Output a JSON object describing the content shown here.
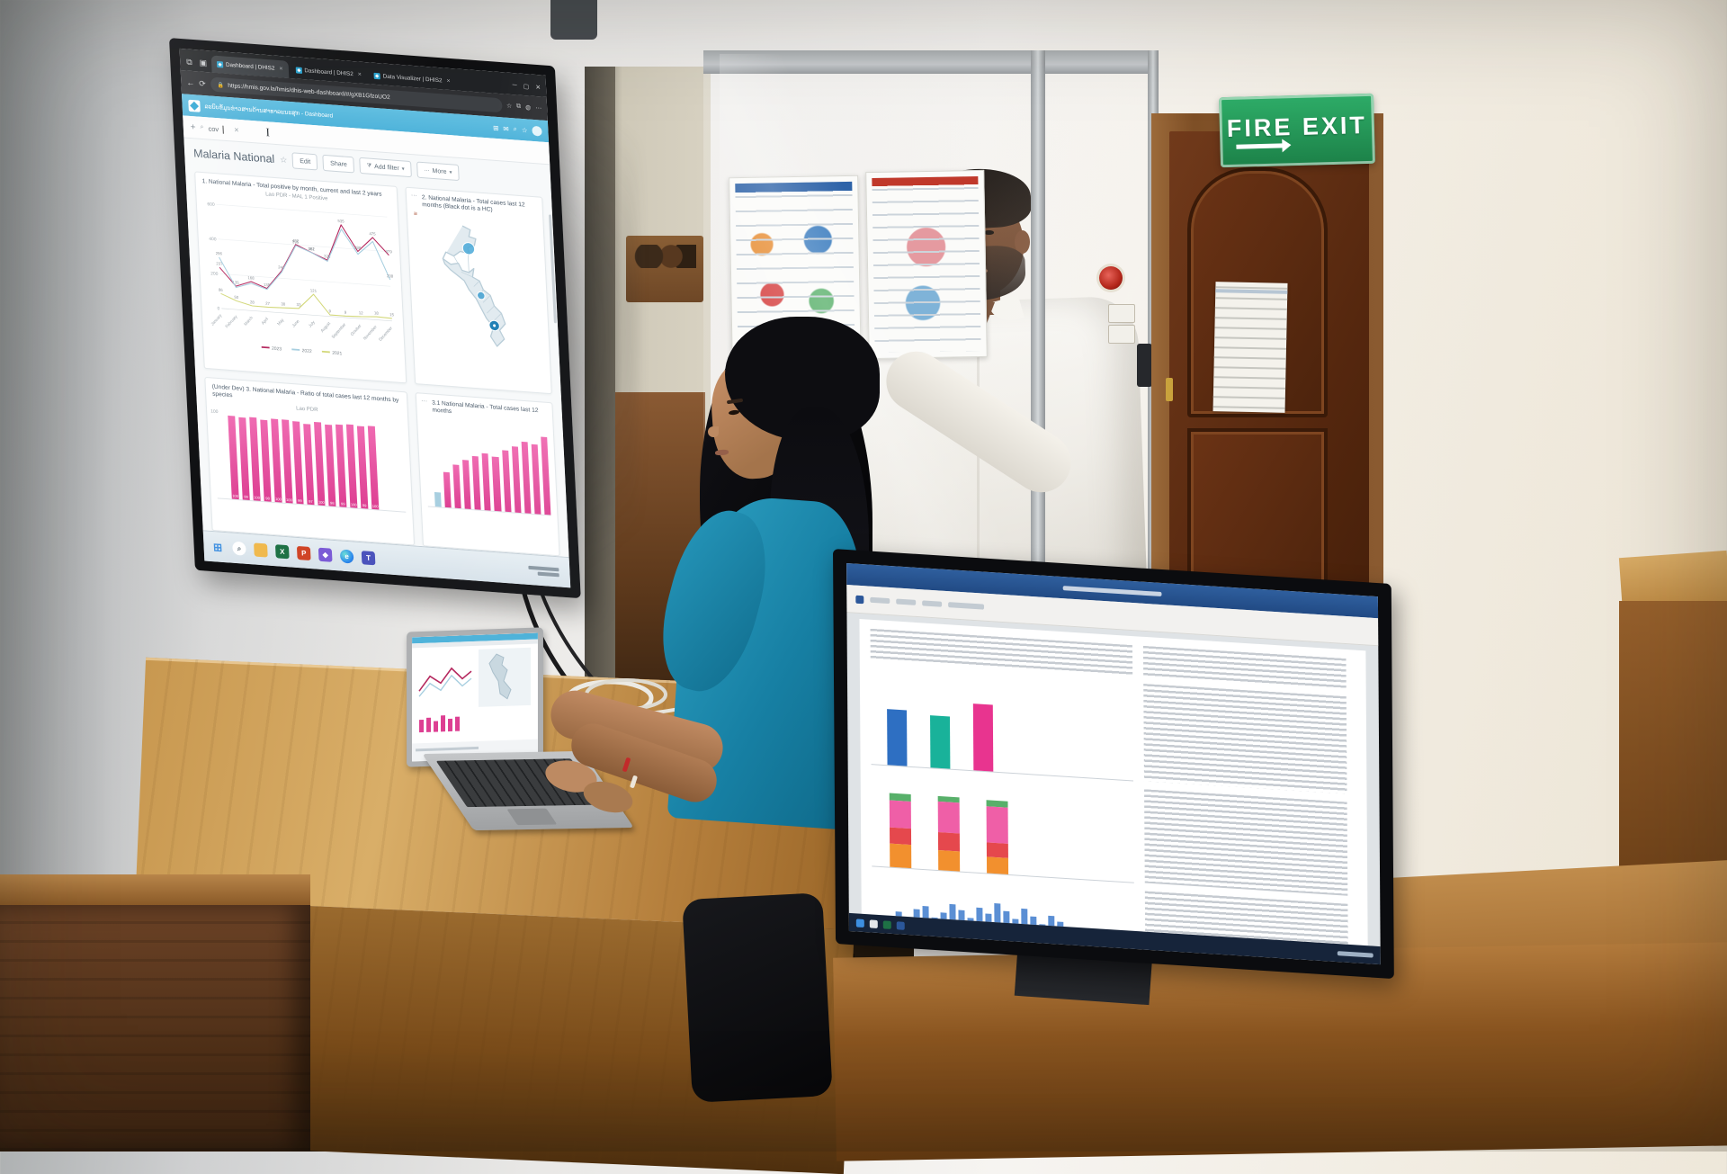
{
  "scene": {
    "setting": "Two health staff review a DHIS2 malaria dashboard on a wall-mounted TV in an office",
    "fire_exit_label": "FIRE EXIT"
  },
  "browser": {
    "tabs": [
      {
        "title": "Dashboard | DHIS2",
        "active": true
      },
      {
        "title": "Dashboard | DHIS2",
        "active": false
      },
      {
        "title": "Data Visualizer | DHIS2",
        "active": false
      }
    ],
    "url": "https://hmis.gov.la/hmis/dhis-web-dashboard/#/gXB1GfzoUO2"
  },
  "dhis2": {
    "header_title": "ລະບົບຂໍ້ມູນຂ່າວສານດ້ານສາທາລະນະສຸກ - Dashboard",
    "search_value": "cov",
    "dashboard_title": "Malaria National",
    "actions": {
      "edit": "Edit",
      "share": "Share",
      "add_filter": "Add filter",
      "more": "More"
    }
  },
  "chart_data": [
    {
      "type": "line",
      "title": "1. National Malaria - Total positive by month, current and last 2 years",
      "subtitle": "Lao PDR - MAL 1 Positive",
      "x": [
        "January",
        "February",
        "March",
        "April",
        "May",
        "June",
        "July",
        "August",
        "September",
        "October",
        "November",
        "December"
      ],
      "ylim": [
        0,
        600
      ],
      "yticks": [
        0,
        200,
        400,
        600
      ],
      "legend_position": "bottom",
      "series": [
        {
          "name": "2023",
          "color": "#b5295f",
          "values": [
            237,
            135,
            168,
            135,
            242,
            402,
            362,
            325,
            535,
            388,
            475,
            379
          ]
        },
        {
          "name": "2022",
          "color": "#a8cfe0",
          "values": [
            296,
            128,
            158,
            130,
            235,
            395,
            361,
            318,
            510,
            372,
            452,
            238
          ],
          "label_indices": [
            0,
            5,
            6,
            11
          ]
        },
        {
          "name": "2021",
          "color": "#d3d87a",
          "values": [
            86,
            50,
            28,
            27,
            30,
            33,
            121,
            9,
            9,
            12,
            18,
            15
          ]
        }
      ]
    },
    {
      "type": "map",
      "title": "2. National Malaria - Total cases last 12 months (Black dot is a HC)",
      "region": "Lao PDR",
      "marker_color": "#3f9fd0",
      "marker_count": 3
    },
    {
      "type": "bar",
      "title": "(Under Dev) 3. National Malaria - Ratio of total cases last 12 months by species",
      "subtitle": "Lao PDR",
      "ylim": [
        0,
        100
      ],
      "yticks": [
        0,
        100
      ],
      "color": "#dd3f92",
      "values": [
        100,
        99,
        100,
        98,
        100,
        100,
        99,
        97,
        100,
        98,
        99,
        100,
        99,
        100
      ]
    },
    {
      "type": "bar",
      "title": "3.1 National Malaria - Total cases last 12 months",
      "color": "#dd3f92",
      "first_color": "#a8cfe0",
      "values": [
        16,
        38,
        46,
        52,
        57,
        60,
        58,
        65,
        70,
        76,
        74,
        82
      ]
    }
  ],
  "taskbar": {
    "icons": [
      "start-icon",
      "search-icon",
      "folder-icon",
      "excel-icon",
      "powerpoint-icon",
      "dhis2-app-icon",
      "edge-icon",
      "teams-icon"
    ]
  },
  "monitor_document": {
    "column_chart": {
      "values": [
        62,
        58,
        74
      ],
      "colors": [
        "#2e6fc2",
        "#19b29a",
        "#e8348f"
      ]
    },
    "stacked_chart": {
      "bars": [
        [
          26,
          18,
          30,
          8
        ],
        [
          22,
          20,
          34,
          6
        ],
        [
          18,
          16,
          40,
          7
        ]
      ],
      "colors": [
        "#f2902e",
        "#e5484d",
        "#ef5fa7",
        "#58b06a"
      ]
    },
    "bottom_chart": {
      "values": [
        10,
        16,
        22,
        12,
        26,
        30,
        18,
        24,
        34,
        28,
        20,
        32,
        26,
        38,
        30,
        22,
        34,
        26,
        18,
        28,
        22,
        14
      ],
      "color": "#5b8fd4"
    }
  },
  "colors": {
    "dhis2_header_blue": "#4fb3da",
    "dashboard_pink": "#dd3f92",
    "fire_sign_green": "#1c8148",
    "shirt_teal": "#1780a4"
  }
}
